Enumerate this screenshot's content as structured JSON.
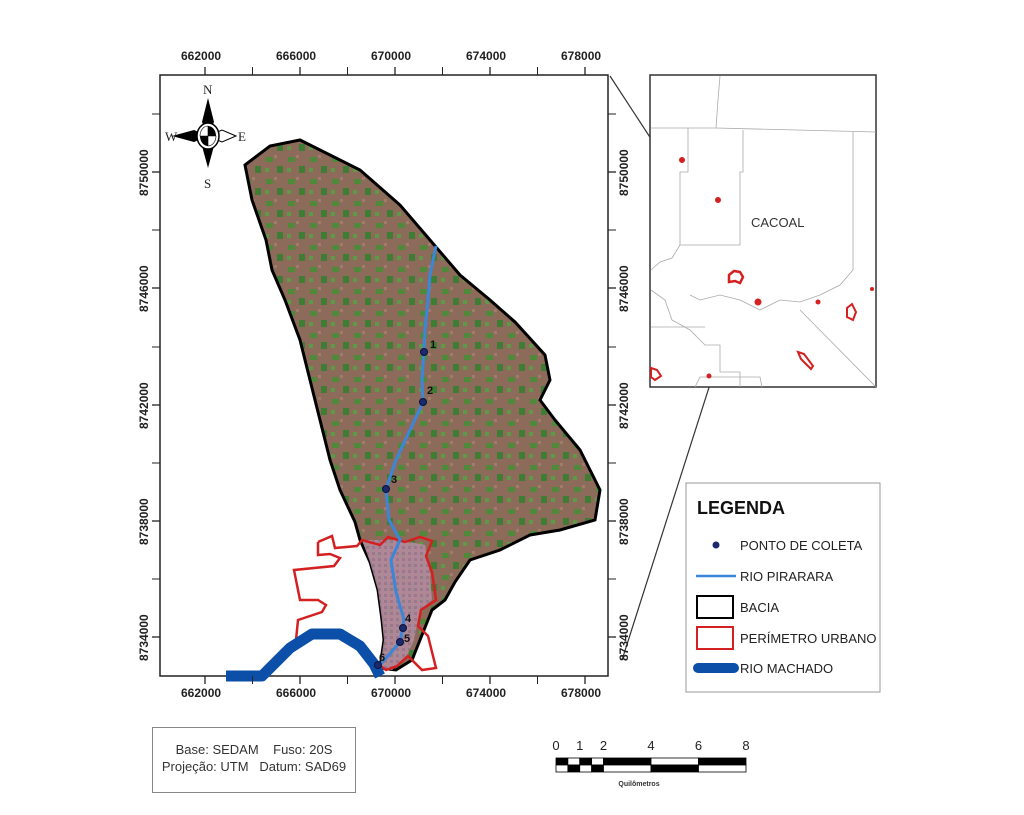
{
  "map": {
    "x_ticks": [
      "662000",
      "666000",
      "670000",
      "674000",
      "678000"
    ],
    "y_ticks": [
      "8750000",
      "8746000",
      "8742000",
      "8738000",
      "8734000"
    ],
    "tick_decimals": "000000",
    "compass": {
      "n": "N",
      "s": "S",
      "e": "E",
      "w": "W"
    },
    "sample_points": [
      "1",
      "2",
      "3",
      "4",
      "5",
      "6"
    ]
  },
  "inset": {
    "label": "CACOAL"
  },
  "legend": {
    "title": "LEGENDA",
    "items": [
      {
        "label": "PONTO DE COLETA",
        "color": "#1a2a6c"
      },
      {
        "label": "RIO PIRARARA",
        "color": "#3a86d8"
      },
      {
        "label": "BACIA",
        "color": "#000000"
      },
      {
        "label": "PERÍMETRO URBANO",
        "color": "#d42020"
      },
      {
        "label": "RIO MACHADO",
        "color": "#0b4fa8"
      }
    ]
  },
  "scale_bar": {
    "labels": [
      "0",
      "1",
      "2",
      "4",
      "6",
      "8"
    ],
    "unit": "Quilômetros"
  },
  "info": {
    "line1": "Base: SEDAM    Fuso: 20S",
    "line2": "Projeção: UTM   Datum: SAD69"
  }
}
